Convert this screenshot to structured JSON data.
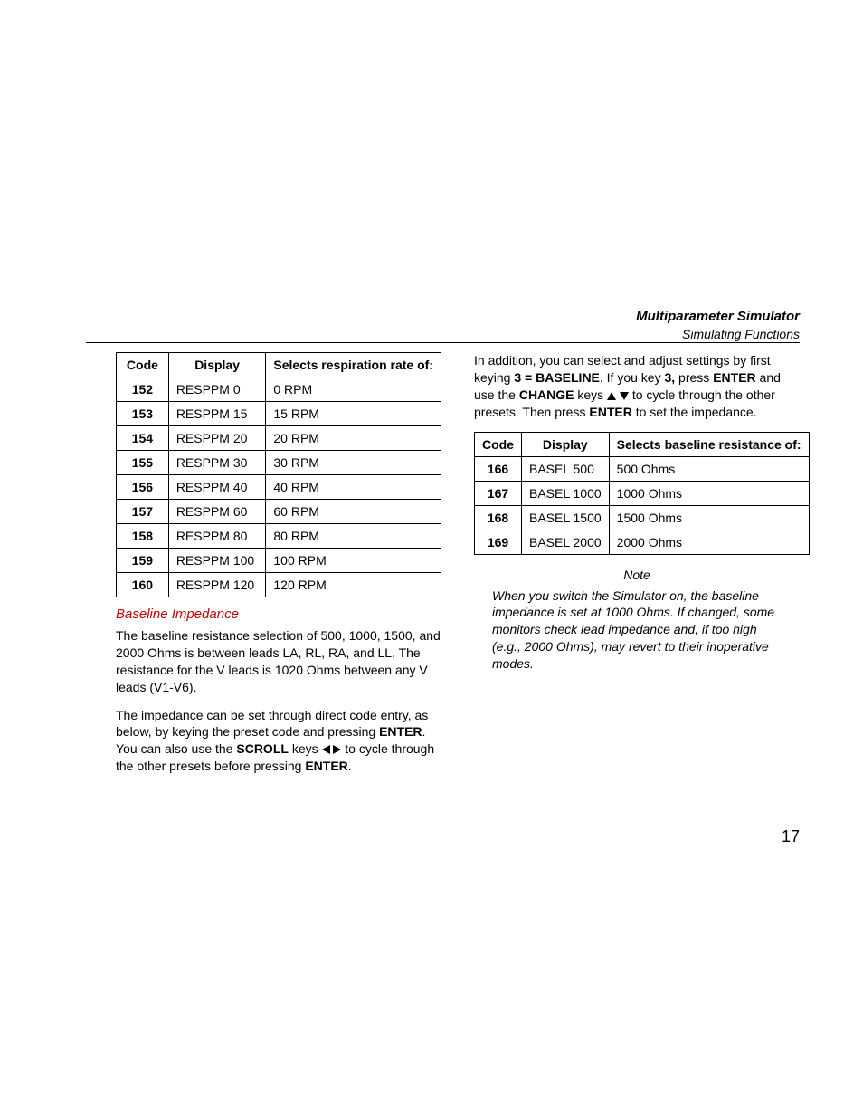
{
  "header": {
    "title": "Multiparameter Simulator",
    "subtitle": "Simulating Functions"
  },
  "page_number": "17",
  "left": {
    "table": {
      "headers": [
        "Code",
        "Display",
        "Selects respiration rate of:"
      ],
      "rows": [
        [
          "152",
          "RESPPM 0",
          "0 RPM"
        ],
        [
          "153",
          "RESPPM 15",
          "15 RPM"
        ],
        [
          "154",
          "RESPPM 20",
          "20 RPM"
        ],
        [
          "155",
          "RESPPM 30",
          "30 RPM"
        ],
        [
          "156",
          "RESPPM 40",
          "40 RPM"
        ],
        [
          "157",
          "RESPPM 60",
          "60 RPM"
        ],
        [
          "158",
          "RESPPM 80",
          "80 RPM"
        ],
        [
          "159",
          "RESPPM 100",
          "100 RPM"
        ],
        [
          "160",
          "RESPPM 120",
          "120 RPM"
        ]
      ]
    },
    "section_head": "Baseline Impedance",
    "para1": "The baseline resistance selection of 500, 1000, 1500, and 2000 Ohms is between leads LA, RL, RA, and LL. The resistance for the V leads is 1020 Ohms between any V leads (V1-V6).",
    "para2_a": "The impedance can be set through direct code entry, as below, by keying the preset code and pressing ",
    "para2_enter1": "ENTER",
    "para2_b": ". You can also use the ",
    "para2_scroll": "SCROLL",
    "para2_c": " keys ",
    "para2_d": " to cycle through the other presets before pressing ",
    "para2_enter2": "ENTER",
    "para2_e": "."
  },
  "right": {
    "intro_a": "In addition, you can select and adjust settings by first keying ",
    "intro_baseline": "3 = BASELINE",
    "intro_b": ". If you key ",
    "intro_three": "3,",
    "intro_c": " press ",
    "intro_enter1": "ENTER",
    "intro_d": " and use the ",
    "intro_change": "CHANGE",
    "intro_e": " keys ",
    "intro_f": " to cycle through the other presets. Then press ",
    "intro_enter2": "ENTER",
    "intro_g": " to set the impedance.",
    "table": {
      "headers": [
        "Code",
        "Display",
        "Selects baseline resistance of:"
      ],
      "rows": [
        [
          "166",
          "BASEL 500",
          "500 Ohms"
        ],
        [
          "167",
          "BASEL 1000",
          "1000 Ohms"
        ],
        [
          "168",
          "BASEL 1500",
          "1500 Ohms"
        ],
        [
          "169",
          "BASEL 2000",
          "2000 Ohms"
        ]
      ]
    },
    "note_label": "Note",
    "note_body": "When you switch the Simulator on, the baseline impedance is set at 1000 Ohms. If changed, some monitors check lead impedance and, if too high (e.g., 2000 Ohms), may revert to their inoperative modes."
  }
}
